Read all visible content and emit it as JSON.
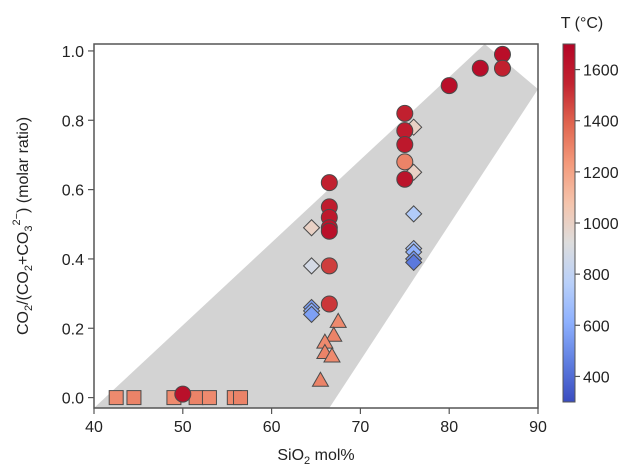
{
  "chart_data": {
    "type": "scatter",
    "title": "",
    "xlabel": "SiO2 mol%",
    "xlabel_parts": {
      "base": "SiO",
      "sub": "2",
      "rest": " mol%"
    },
    "ylabel": "CO2/(CO2+CO3 2−) (molar ratio)",
    "ylabel_parts": [
      "CO",
      "2",
      "/(CO",
      "2",
      "+CO",
      "3",
      "2−",
      ") (molar ratio)"
    ],
    "xlim": [
      40,
      90
    ],
    "ylim": [
      -0.03,
      1.02
    ],
    "x_ticks": [
      "40",
      "50",
      "60",
      "70",
      "80",
      "90"
    ],
    "y_ticks": [
      "0.0",
      "0.2",
      "0.4",
      "0.6",
      "0.8",
      "1.0"
    ],
    "grid": false,
    "band": {
      "lower": [
        [
          66.5,
          -0.03
        ],
        [
          90,
          0.89
        ]
      ],
      "upper": [
        [
          40,
          -0.03
        ],
        [
          84,
          1.02
        ]
      ],
      "color": "#d3d3d3"
    },
    "colorbar": {
      "label": "T (°C)",
      "range": [
        300,
        1700
      ],
      "ticks": [
        "400",
        "600",
        "800",
        "1000",
        "1200",
        "1400",
        "1600"
      ],
      "colors": [
        "#3a4cc0",
        "#5f7ee0",
        "#8db0fe",
        "#b9d0f9",
        "#dddddd",
        "#f5c4ac",
        "#f49a7b",
        "#e0654f",
        "#c22330",
        "#b40426"
      ]
    },
    "series": [
      {
        "marker": "circle",
        "points": [
          {
            "x": 50,
            "y": 0.01,
            "t": 1640
          },
          {
            "x": 66.5,
            "y": 0.62,
            "t": 1560
          },
          {
            "x": 66.5,
            "y": 0.55,
            "t": 1580
          },
          {
            "x": 66.5,
            "y": 0.52,
            "t": 1600
          },
          {
            "x": 66.5,
            "y": 0.49,
            "t": 1620
          },
          {
            "x": 66.5,
            "y": 0.48,
            "t": 1640
          },
          {
            "x": 66.5,
            "y": 0.38,
            "t": 1480
          },
          {
            "x": 66.5,
            "y": 0.27,
            "t": 1500
          },
          {
            "x": 75,
            "y": 0.82,
            "t": 1560
          },
          {
            "x": 75,
            "y": 0.77,
            "t": 1580
          },
          {
            "x": 75,
            "y": 0.73,
            "t": 1600
          },
          {
            "x": 75,
            "y": 0.68,
            "t": 1300
          },
          {
            "x": 75,
            "y": 0.63,
            "t": 1620
          },
          {
            "x": 80,
            "y": 0.9,
            "t": 1650
          },
          {
            "x": 83.5,
            "y": 0.95,
            "t": 1660
          },
          {
            "x": 86,
            "y": 0.99,
            "t": 1650
          },
          {
            "x": 86,
            "y": 0.95,
            "t": 1560
          }
        ]
      },
      {
        "marker": "square",
        "points": [
          {
            "x": 42.5,
            "y": 0.0,
            "t": 1280
          },
          {
            "x": 44.5,
            "y": 0.0,
            "t": 1300
          },
          {
            "x": 49,
            "y": 0.0,
            "t": 1280
          },
          {
            "x": 51.5,
            "y": 0.0,
            "t": 1300
          },
          {
            "x": 53,
            "y": 0.0,
            "t": 1280
          },
          {
            "x": 55.8,
            "y": 0.0,
            "t": 1280
          },
          {
            "x": 56.5,
            "y": 0.0,
            "t": 1300
          }
        ]
      },
      {
        "marker": "diamond",
        "points": [
          {
            "x": 64.5,
            "y": 0.49,
            "t": 1000
          },
          {
            "x": 64.5,
            "y": 0.38,
            "t": 880
          },
          {
            "x": 64.5,
            "y": 0.26,
            "t": 560
          },
          {
            "x": 64.5,
            "y": 0.25,
            "t": 600
          },
          {
            "x": 64.5,
            "y": 0.24,
            "t": 560
          },
          {
            "x": 76,
            "y": 0.78,
            "t": 1000
          },
          {
            "x": 76,
            "y": 0.65,
            "t": 1000
          },
          {
            "x": 76,
            "y": 0.53,
            "t": 740
          },
          {
            "x": 76,
            "y": 0.43,
            "t": 700
          },
          {
            "x": 76,
            "y": 0.42,
            "t": 620
          },
          {
            "x": 76,
            "y": 0.4,
            "t": 520
          },
          {
            "x": 76,
            "y": 0.39,
            "t": 440
          }
        ]
      },
      {
        "marker": "triangle",
        "points": [
          {
            "x": 67.5,
            "y": 0.22,
            "t": 1280
          },
          {
            "x": 67,
            "y": 0.18,
            "t": 1300
          },
          {
            "x": 66,
            "y": 0.16,
            "t": 1280
          },
          {
            "x": 66,
            "y": 0.13,
            "t": 1300
          },
          {
            "x": 66.8,
            "y": 0.12,
            "t": 1280
          },
          {
            "x": 65.5,
            "y": 0.05,
            "t": 1300
          }
        ]
      }
    ]
  }
}
